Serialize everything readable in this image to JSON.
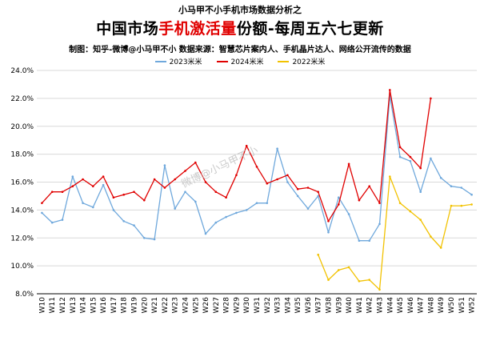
{
  "header": {
    "top_title": "小马甲不小手机市场数据分析之",
    "main_title_pre": "中国市场",
    "main_title_highlight": "手机激活量",
    "main_title_post": "份额-每周五六七更新",
    "subtitle": "制图：知乎-微博@小马甲不小  数据来源：智慧芯片案内人、手机晶片达人、网络公开流传的数据"
  },
  "watermark": "微博@小马甲不小",
  "colors": {
    "s2023": "#6fa8dc",
    "s2024": "#e00000",
    "s2022": "#f2c200",
    "grid": "#d9d9d9",
    "axis": "#000000"
  },
  "chart_data": {
    "type": "line",
    "title": "中国市场手机激活量份额-每周五六七更新",
    "ylim": [
      8.0,
      24.0
    ],
    "y_ticks": [
      "8.0%",
      "10.0%",
      "12.0%",
      "14.0%",
      "16.0%",
      "18.0%",
      "20.0%",
      "22.0%",
      "24.0%"
    ],
    "y_tick_values": [
      8,
      10,
      12,
      14,
      16,
      18,
      20,
      22,
      24
    ],
    "categories": [
      "W10",
      "W11",
      "W12",
      "W13",
      "W14",
      "W15",
      "W16",
      "W17",
      "W18",
      "W19",
      "W20",
      "W21",
      "W22",
      "W23",
      "W24",
      "W25",
      "W26",
      "W27",
      "W28",
      "W29",
      "W30",
      "W31",
      "W32",
      "W33",
      "W34",
      "W35",
      "W36",
      "W37",
      "W38",
      "W39",
      "W40",
      "W41",
      "W42",
      "W43",
      "W44",
      "W45",
      "W46",
      "W47",
      "W48",
      "W49",
      "W50",
      "W51",
      "W52"
    ],
    "grid": true,
    "legend_position": "top",
    "series": [
      {
        "name": "2023米米",
        "key": "s2023",
        "values": [
          13.8,
          13.1,
          13.3,
          16.4,
          14.5,
          14.2,
          15.8,
          14.0,
          13.2,
          12.9,
          12.0,
          11.9,
          17.2,
          14.1,
          15.3,
          14.6,
          12.3,
          13.1,
          13.5,
          13.8,
          14.0,
          14.5,
          14.5,
          18.4,
          16.0,
          15.0,
          14.1,
          15.0,
          12.4,
          14.9,
          13.7,
          11.8,
          11.8,
          13.0,
          22.2,
          17.8,
          17.5,
          15.3,
          17.7,
          16.3,
          15.7,
          15.6,
          15.1
        ]
      },
      {
        "name": "2024米米",
        "key": "s2024",
        "values": [
          14.5,
          15.3,
          15.3,
          15.7,
          16.2,
          15.7,
          16.4,
          14.9,
          15.1,
          15.3,
          14.7,
          16.2,
          15.6,
          16.2,
          16.8,
          17.4,
          16.0,
          15.3,
          14.9,
          16.5,
          18.6,
          17.1,
          15.9,
          16.2,
          16.5,
          15.5,
          15.6,
          15.3,
          13.2,
          14.4,
          17.3,
          14.7,
          15.7,
          14.5,
          22.6,
          18.5,
          17.8,
          17.0,
          22.0,
          null,
          null,
          null,
          null
        ]
      },
      {
        "name": "2022米米",
        "key": "s2022",
        "values": [
          null,
          null,
          null,
          null,
          null,
          null,
          null,
          null,
          null,
          null,
          null,
          null,
          null,
          null,
          null,
          null,
          null,
          null,
          null,
          null,
          null,
          null,
          null,
          null,
          null,
          null,
          null,
          10.8,
          9.0,
          9.7,
          9.9,
          8.9,
          9.0,
          8.3,
          16.4,
          14.5,
          13.9,
          13.3,
          12.1,
          11.3,
          14.3,
          14.3,
          14.4
        ]
      }
    ]
  }
}
